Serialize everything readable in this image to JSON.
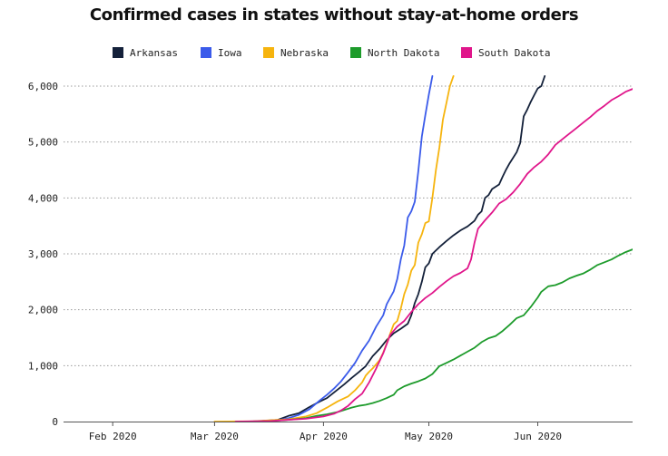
{
  "chart_data": {
    "type": "line",
    "title": "Confirmed cases in states without stay-at-home orders",
    "xlabel": "",
    "ylabel": "",
    "ylim": [
      0,
      6000
    ],
    "yticks": [
      0,
      1000,
      2000,
      3000,
      4000,
      5000,
      6000
    ],
    "ytick_labels": [
      "0",
      "1,000",
      "2,000",
      "3,000",
      "4,000",
      "5,000",
      "6,000"
    ],
    "xlim": [
      -14,
      148
    ],
    "xticks": [
      {
        "label": "Feb 2020",
        "day": 0
      },
      {
        "label": "Mar 2020",
        "day": 29
      },
      {
        "label": "Apr 2020",
        "day": 60
      },
      {
        "label": "May 2020",
        "day": 90
      },
      {
        "label": "Jun 2020",
        "day": 121
      }
    ],
    "x_unit": "days since Feb 1, 2020",
    "grid": "horizontal dotted",
    "legend_position": "top",
    "series": [
      {
        "name": "Arkansas",
        "color": "#14213a",
        "points": [
          [
            40,
            0
          ],
          [
            47,
            30
          ],
          [
            50,
            100
          ],
          [
            53,
            150
          ],
          [
            56,
            260
          ],
          [
            59,
            360
          ],
          [
            61,
            420
          ],
          [
            63,
            520
          ],
          [
            66,
            670
          ],
          [
            68,
            780
          ],
          [
            70,
            880
          ],
          [
            72,
            990
          ],
          [
            74,
            1170
          ],
          [
            76,
            1300
          ],
          [
            78,
            1460
          ],
          [
            80,
            1580
          ],
          [
            82,
            1660
          ],
          [
            84,
            1750
          ],
          [
            85,
            1900
          ],
          [
            86,
            2120
          ],
          [
            87,
            2280
          ],
          [
            88,
            2500
          ],
          [
            89,
            2760
          ],
          [
            90,
            2830
          ],
          [
            91,
            3000
          ],
          [
            93,
            3120
          ],
          [
            95,
            3230
          ],
          [
            97,
            3330
          ],
          [
            99,
            3420
          ],
          [
            101,
            3490
          ],
          [
            103,
            3590
          ],
          [
            104,
            3700
          ],
          [
            105,
            3760
          ],
          [
            106,
            4000
          ],
          [
            107,
            4050
          ],
          [
            108,
            4160
          ],
          [
            110,
            4240
          ],
          [
            111,
            4380
          ],
          [
            112,
            4510
          ],
          [
            113,
            4620
          ],
          [
            115,
            4820
          ],
          [
            116,
            4980
          ],
          [
            117,
            5460
          ],
          [
            118,
            5580
          ],
          [
            119,
            5720
          ],
          [
            120,
            5840
          ],
          [
            121,
            5960
          ],
          [
            122,
            6000
          ],
          [
            123,
            6180
          ]
        ]
      },
      {
        "name": "Iowa",
        "color": "#3b5bea",
        "points": [
          [
            45,
            0
          ],
          [
            50,
            60
          ],
          [
            53,
            120
          ],
          [
            56,
            220
          ],
          [
            59,
            380
          ],
          [
            61,
            480
          ],
          [
            63,
            590
          ],
          [
            65,
            720
          ],
          [
            67,
            880
          ],
          [
            69,
            1050
          ],
          [
            71,
            1270
          ],
          [
            73,
            1450
          ],
          [
            75,
            1700
          ],
          [
            77,
            1900
          ],
          [
            78,
            2100
          ],
          [
            80,
            2330
          ],
          [
            81,
            2550
          ],
          [
            82,
            2900
          ],
          [
            83,
            3150
          ],
          [
            84,
            3650
          ],
          [
            85,
            3760
          ],
          [
            86,
            3930
          ],
          [
            87,
            4480
          ],
          [
            88,
            5100
          ],
          [
            89,
            5480
          ],
          [
            90,
            5850
          ],
          [
            91,
            6180
          ]
        ]
      },
      {
        "name": "Nebraska",
        "color": "#f6b40e",
        "points": [
          [
            29,
            0
          ],
          [
            40,
            5
          ],
          [
            50,
            40
          ],
          [
            55,
            90
          ],
          [
            58,
            150
          ],
          [
            61,
            250
          ],
          [
            64,
            360
          ],
          [
            67,
            450
          ],
          [
            69,
            560
          ],
          [
            71,
            700
          ],
          [
            72,
            820
          ],
          [
            73,
            890
          ],
          [
            74,
            950
          ],
          [
            76,
            1100
          ],
          [
            77,
            1230
          ],
          [
            78,
            1400
          ],
          [
            79,
            1570
          ],
          [
            80,
            1740
          ],
          [
            81,
            1800
          ],
          [
            82,
            2020
          ],
          [
            83,
            2280
          ],
          [
            84,
            2450
          ],
          [
            85,
            2700
          ],
          [
            86,
            2800
          ],
          [
            87,
            3200
          ],
          [
            88,
            3350
          ],
          [
            89,
            3550
          ],
          [
            90,
            3580
          ],
          [
            91,
            4000
          ],
          [
            92,
            4500
          ],
          [
            93,
            4900
          ],
          [
            94,
            5400
          ],
          [
            95,
            5700
          ],
          [
            96,
            6000
          ],
          [
            97,
            6180
          ]
        ]
      },
      {
        "name": "North Dakota",
        "color": "#1d9b2b",
        "points": [
          [
            37,
            0
          ],
          [
            45,
            10
          ],
          [
            50,
            30
          ],
          [
            55,
            60
          ],
          [
            58,
            100
          ],
          [
            61,
            130
          ],
          [
            64,
            170
          ],
          [
            66,
            210
          ],
          [
            68,
            250
          ],
          [
            70,
            280
          ],
          [
            72,
            300
          ],
          [
            74,
            330
          ],
          [
            76,
            370
          ],
          [
            78,
            420
          ],
          [
            80,
            480
          ],
          [
            81,
            560
          ],
          [
            83,
            630
          ],
          [
            85,
            680
          ],
          [
            87,
            720
          ],
          [
            89,
            770
          ],
          [
            91,
            850
          ],
          [
            93,
            990
          ],
          [
            95,
            1050
          ],
          [
            97,
            1110
          ],
          [
            99,
            1180
          ],
          [
            101,
            1250
          ],
          [
            103,
            1320
          ],
          [
            105,
            1420
          ],
          [
            107,
            1490
          ],
          [
            109,
            1530
          ],
          [
            111,
            1620
          ],
          [
            113,
            1730
          ],
          [
            115,
            1850
          ],
          [
            117,
            1900
          ],
          [
            119,
            2050
          ],
          [
            121,
            2220
          ],
          [
            122,
            2320
          ],
          [
            124,
            2420
          ],
          [
            126,
            2440
          ],
          [
            128,
            2490
          ],
          [
            130,
            2560
          ],
          [
            132,
            2610
          ],
          [
            134,
            2650
          ],
          [
            136,
            2720
          ],
          [
            138,
            2800
          ],
          [
            140,
            2850
          ],
          [
            142,
            2900
          ],
          [
            144,
            2970
          ],
          [
            146,
            3030
          ],
          [
            148,
            3080
          ]
        ]
      },
      {
        "name": "South Dakota",
        "color": "#e0168b",
        "points": [
          [
            35,
            0
          ],
          [
            45,
            10
          ],
          [
            50,
            30
          ],
          [
            55,
            50
          ],
          [
            60,
            90
          ],
          [
            63,
            140
          ],
          [
            65,
            200
          ],
          [
            67,
            280
          ],
          [
            69,
            400
          ],
          [
            71,
            500
          ],
          [
            73,
            700
          ],
          [
            75,
            950
          ],
          [
            77,
            1220
          ],
          [
            79,
            1550
          ],
          [
            81,
            1700
          ],
          [
            83,
            1800
          ],
          [
            85,
            1960
          ],
          [
            87,
            2100
          ],
          [
            89,
            2210
          ],
          [
            91,
            2300
          ],
          [
            93,
            2410
          ],
          [
            95,
            2510
          ],
          [
            97,
            2600
          ],
          [
            99,
            2660
          ],
          [
            101,
            2740
          ],
          [
            102,
            2900
          ],
          [
            103,
            3200
          ],
          [
            104,
            3450
          ],
          [
            106,
            3600
          ],
          [
            108,
            3740
          ],
          [
            110,
            3900
          ],
          [
            112,
            3980
          ],
          [
            114,
            4100
          ],
          [
            116,
            4250
          ],
          [
            118,
            4430
          ],
          [
            120,
            4550
          ],
          [
            122,
            4650
          ],
          [
            124,
            4780
          ],
          [
            126,
            4950
          ],
          [
            128,
            5050
          ],
          [
            130,
            5150
          ],
          [
            132,
            5250
          ],
          [
            134,
            5350
          ],
          [
            136,
            5450
          ],
          [
            138,
            5560
          ],
          [
            140,
            5650
          ],
          [
            142,
            5750
          ],
          [
            144,
            5820
          ],
          [
            146,
            5900
          ],
          [
            148,
            5950
          ]
        ]
      }
    ]
  }
}
